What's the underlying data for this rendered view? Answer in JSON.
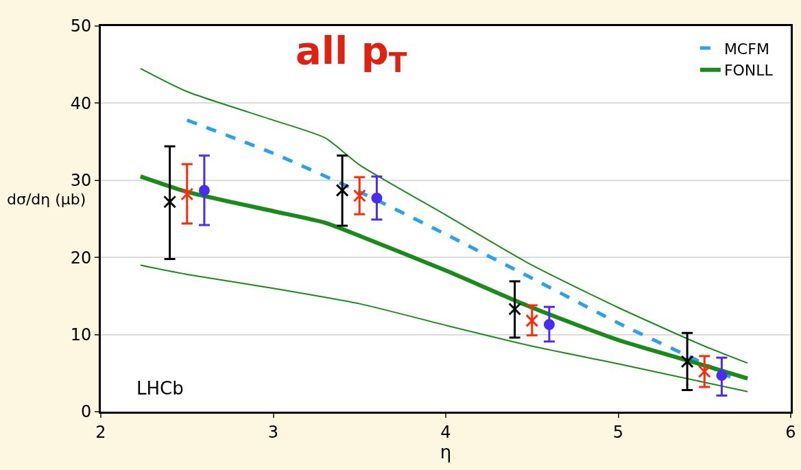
{
  "chart_data": {
    "type": "line",
    "xlabel": "η",
    "ylabel": "dσ/dη (μb)",
    "xlim": [
      2,
      6
    ],
    "xticks": [
      2,
      3,
      4,
      5,
      6
    ],
    "ylim": [
      0,
      50
    ],
    "yticks": [
      0,
      10,
      20,
      30,
      40,
      50
    ],
    "grid": "y",
    "legend": "top right",
    "annotations": [
      "all p$_{T}$",
      "LHCb"
    ],
    "series": [
      {
        "name": "MCFM",
        "color": "#2aa0f0",
        "line_style": "dashed",
        "marker": "none",
        "x": [
          2.5,
          3.0,
          3.5,
          4.0,
          4.5,
          5.0,
          5.5,
          5.65
        ],
        "values": [
          37.8,
          33.5,
          28.5,
          23,
          17.3,
          11.5,
          6.2,
          4.5
        ]
      },
      {
        "name": "FONLL",
        "color": "#1a8a1a",
        "line_style": "solid",
        "marker": "none",
        "x": [
          2.23,
          2.5,
          3.0,
          3.3,
          3.5,
          4.0,
          4.5,
          5.0,
          5.5,
          5.75
        ],
        "values": [
          30.5,
          28.5,
          26,
          24.5,
          22.8,
          18.3,
          13.5,
          9.3,
          6,
          4.3
        ]
      },
      {
        "color": "#1a8a1a",
        "line_style": "solid",
        "marker": "none",
        "x": [
          2.23,
          2.5,
          3.0,
          3.3,
          3.5,
          4.0,
          4.5,
          5.0,
          5.5,
          5.75
        ],
        "values": [
          44.5,
          41.5,
          37.8,
          35.5,
          32,
          25.5,
          19,
          13.5,
          8.5,
          6.3
        ]
      },
      {
        "color": "#1a8a1a",
        "line_style": "solid",
        "marker": "none",
        "x": [
          2.23,
          2.5,
          3.0,
          3.5,
          4.0,
          4.5,
          5.0,
          5.5,
          5.75
        ],
        "values": [
          19,
          17.8,
          16,
          14,
          11.2,
          8.5,
          6.2,
          3.8,
          2.6
        ]
      },
      {
        "type": "scatter",
        "color": "#000000",
        "marker": "cross",
        "x": [
          2.4,
          3.4,
          4.4,
          5.4
        ],
        "values": [
          27.2,
          28.7,
          13.3,
          6.5
        ],
        "errors": [
          [
            19.8,
            34.4
          ],
          [
            24.1,
            33.2
          ],
          [
            9.6,
            16.9
          ],
          [
            2.8,
            10.2
          ]
        ]
      },
      {
        "type": "scatter",
        "color": "#ff2a0a",
        "marker": "cross",
        "x": [
          2.5,
          3.5,
          4.5,
          5.5
        ],
        "values": [
          28.2,
          28.0,
          11.8,
          5.2
        ],
        "errors": [
          [
            24.4,
            32.1
          ],
          [
            25.6,
            30.4
          ],
          [
            9.9,
            13.8
          ],
          [
            3.2,
            7.2
          ]
        ]
      },
      {
        "type": "scatter",
        "color": "#4b2cf0",
        "marker": "circle",
        "x": [
          2.6,
          3.6,
          4.6,
          5.6
        ],
        "values": [
          28.7,
          27.7,
          11.3,
          4.7
        ],
        "errors": [
          [
            24.2,
            33.2
          ],
          [
            24.9,
            30.5
          ],
          [
            9.1,
            13.6
          ],
          [
            2.1,
            7.0
          ]
        ]
      }
    ]
  }
}
